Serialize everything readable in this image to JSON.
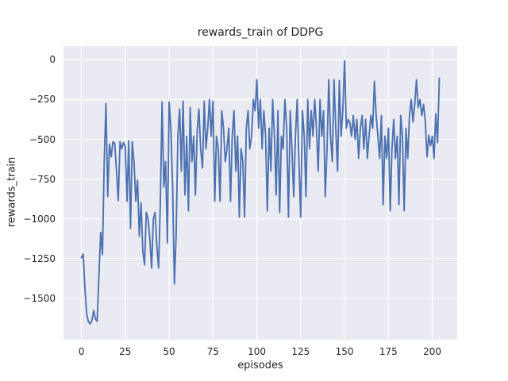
{
  "chart_data": {
    "type": "line",
    "title": "rewards_train of DDPG",
    "xlabel": "episodes",
    "ylabel": "rewards_train",
    "grid": true,
    "legend": null,
    "style": "seaborn-darkgrid",
    "series_color": "#4C72B0",
    "plot_bg": "#EAEAF2",
    "grid_color": "#FFFFFF",
    "text_color": "#262626",
    "xlim": [
      -10.2,
      214.2
    ],
    "ylim": [
      -1761,
      87
    ],
    "xticks": {
      "values": [
        0,
        25,
        50,
        75,
        100,
        125,
        150,
        175,
        200
      ],
      "labels": [
        "0",
        "25",
        "50",
        "75",
        "100",
        "125",
        "150",
        "175",
        "200"
      ]
    },
    "yticks": {
      "values": [
        0,
        -250,
        -500,
        -750,
        -1000,
        -1250,
        -1500
      ],
      "labels": [
        "0",
        "−250",
        "−500",
        "−750",
        "−1000",
        "−1250",
        "−1500"
      ]
    },
    "x_start": 0,
    "x_step": 1,
    "values": [
      -1245,
      -1222,
      -1435,
      -1598,
      -1648,
      -1662,
      -1640,
      -1577,
      -1630,
      -1645,
      -1360,
      -1085,
      -1225,
      -640,
      -275,
      -860,
      -530,
      -610,
      -515,
      -525,
      -700,
      -885,
      -515,
      -560,
      -520,
      -545,
      -890,
      -510,
      -1060,
      -515,
      -650,
      -890,
      -755,
      -1110,
      -900,
      -1200,
      -1290,
      -960,
      -1000,
      -1120,
      -1310,
      -1000,
      -960,
      -1175,
      -1310,
      -900,
      -265,
      -800,
      -640,
      -1150,
      -265,
      -430,
      -800,
      -1410,
      -1100,
      -480,
      -310,
      -700,
      -260,
      -850,
      -480,
      -950,
      -300,
      -640,
      -480,
      -850,
      -450,
      -310,
      -560,
      -680,
      -260,
      -560,
      -430,
      -250,
      -480,
      -260,
      -890,
      -480,
      -560,
      -890,
      -320,
      -430,
      -640,
      -560,
      -430,
      -890,
      -480,
      -320,
      -700,
      -480,
      -990,
      -560,
      -640,
      -990,
      -430,
      -320,
      -560,
      -480,
      -250,
      -320,
      -125,
      -430,
      -250,
      -560,
      -320,
      -480,
      -950,
      -430,
      -700,
      -250,
      -480,
      -850,
      -320,
      -960,
      -480,
      -560,
      -250,
      -430,
      -990,
      -320,
      -560,
      -860,
      -480,
      -250,
      -640,
      -990,
      -320,
      -480,
      -860,
      -250,
      -560,
      -320,
      -480,
      -250,
      -430,
      -700,
      -250,
      -480,
      -320,
      -860,
      -560,
      -125,
      -480,
      -640,
      -125,
      -430,
      -700,
      -130,
      -480,
      -320,
      -5,
      -430,
      -375,
      -395,
      -480,
      -350,
      -500,
      -375,
      -620,
      -430,
      -350,
      -560,
      -375,
      -620,
      -480,
      -350,
      -430,
      -135,
      -350,
      -480,
      -620,
      -350,
      -910,
      -480,
      -620,
      -430,
      -950,
      -560,
      -375,
      -620,
      -480,
      -910,
      -350,
      -480,
      -950,
      -430,
      -620,
      -350,
      -250,
      -390,
      -280,
      -125,
      -300,
      -250,
      -350,
      -280,
      -390,
      -610,
      -475,
      -540,
      -480,
      -620,
      -340,
      -520,
      -115
    ]
  }
}
